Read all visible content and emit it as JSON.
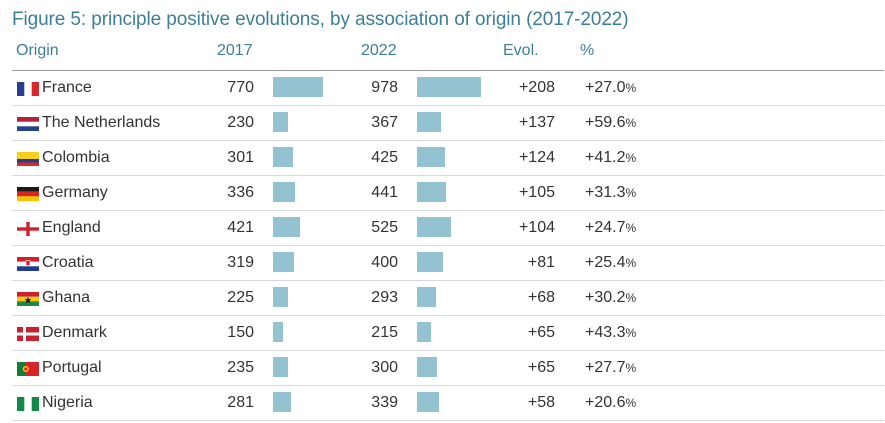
{
  "title": "Figure 5: principle positive evolutions, by association of origin (2017-2022)",
  "headers": {
    "origin": "Origin",
    "y2017": "2017",
    "y2022": "2022",
    "evol": "Evol.",
    "pct": "%"
  },
  "colors": {
    "accent": "#3d7f97",
    "bar": "#93c2d0"
  },
  "chart_data": {
    "type": "bar",
    "title": "Figure 5: principle positive evolutions, by association of origin (2017-2022)",
    "categories": [
      "France",
      "The Netherlands",
      "Colombia",
      "Germany",
      "England",
      "Croatia",
      "Ghana",
      "Denmark",
      "Portugal",
      "Nigeria"
    ],
    "series": [
      {
        "name": "2017",
        "values": [
          770,
          230,
          301,
          336,
          421,
          319,
          225,
          150,
          235,
          281
        ]
      },
      {
        "name": "2022",
        "values": [
          978,
          367,
          425,
          441,
          525,
          400,
          293,
          215,
          300,
          339
        ]
      }
    ],
    "rows": [
      {
        "origin": "France",
        "flag": "france-flag-icon",
        "y2017": "770",
        "y2022": "978",
        "evol": "+208",
        "pct": "+27.0",
        "pct_sign": "%"
      },
      {
        "origin": "The Netherlands",
        "flag": "netherlands-flag-icon",
        "y2017": "230",
        "y2022": "367",
        "evol": "+137",
        "pct": "+59.6",
        "pct_sign": "%"
      },
      {
        "origin": "Colombia",
        "flag": "colombia-flag-icon",
        "y2017": "301",
        "y2022": "425",
        "evol": "+124",
        "pct": "+41.2",
        "pct_sign": "%"
      },
      {
        "origin": "Germany",
        "flag": "germany-flag-icon",
        "y2017": "336",
        "y2022": "441",
        "evol": "+105",
        "pct": "+31.3",
        "pct_sign": "%"
      },
      {
        "origin": "England",
        "flag": "england-flag-icon",
        "y2017": "421",
        "y2022": "525",
        "evol": "+104",
        "pct": "+24.7",
        "pct_sign": "%"
      },
      {
        "origin": "Croatia",
        "flag": "croatia-flag-icon",
        "y2017": "319",
        "y2022": "400",
        "evol": "+81",
        "pct": "+25.4",
        "pct_sign": "%"
      },
      {
        "origin": "Ghana",
        "flag": "ghana-flag-icon",
        "y2017": "225",
        "y2022": "293",
        "evol": "+68",
        "pct": "+30.2",
        "pct_sign": "%"
      },
      {
        "origin": "Denmark",
        "flag": "denmark-flag-icon",
        "y2017": "150",
        "y2022": "215",
        "evol": "+65",
        "pct": "+43.3",
        "pct_sign": "%"
      },
      {
        "origin": "Portugal",
        "flag": "portugal-flag-icon",
        "y2017": "235",
        "y2022": "300",
        "evol": "+65",
        "pct": "+27.7",
        "pct_sign": "%"
      },
      {
        "origin": "Nigeria",
        "flag": "nigeria-flag-icon",
        "y2017": "281",
        "y2022": "339",
        "evol": "+58",
        "pct": "+20.6",
        "pct_sign": "%"
      }
    ]
  }
}
